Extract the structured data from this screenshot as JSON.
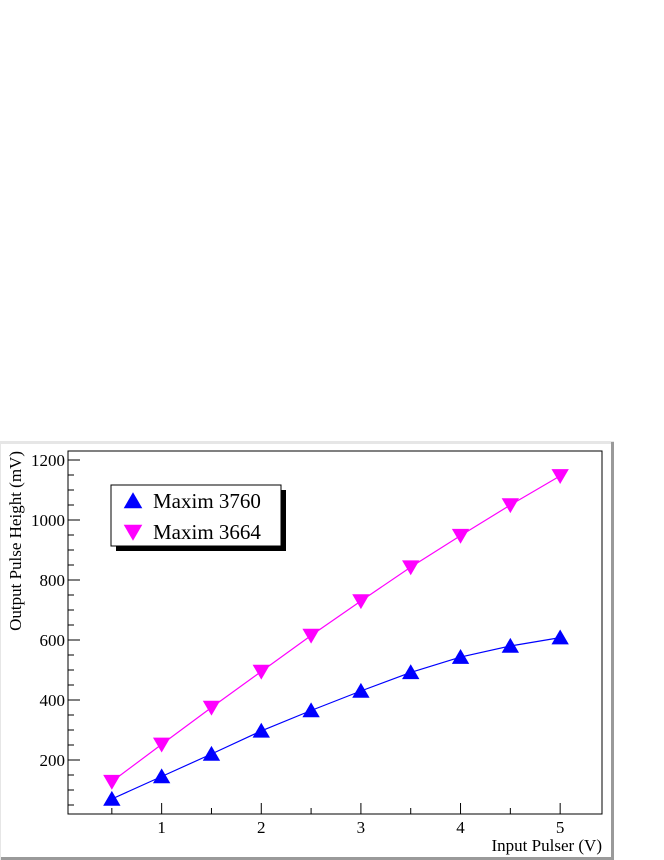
{
  "chart_data": {
    "type": "line",
    "title": "",
    "xlabel": "Input Pulser (V)",
    "ylabel": "Output Pulse Height (mV)",
    "xlim": [
      0.06,
      5.42
    ],
    "ylim": [
      20,
      1230
    ],
    "x_ticks": [
      1,
      2,
      3,
      4,
      5
    ],
    "y_ticks": [
      200,
      400,
      600,
      800,
      1000,
      1200
    ],
    "grid": false,
    "legend_position": "top-left",
    "series": [
      {
        "name": "Maxim 3760",
        "marker": "triangle-up",
        "marker_color": "#0000ff",
        "line_color": "#0000ff",
        "x": [
          0.5,
          1.0,
          1.5,
          2.0,
          2.5,
          3.0,
          3.5,
          4.0,
          4.5,
          5.0
        ],
        "values": [
          70,
          145,
          220,
          297,
          365,
          430,
          492,
          543,
          580,
          608
        ]
      },
      {
        "name": "Maxim 3664",
        "marker": "triangle-down",
        "marker_color": "#ff00ff",
        "line_color": "#ff00ff",
        "x": [
          0.5,
          1.0,
          1.5,
          2.0,
          2.5,
          3.0,
          3.5,
          4.0,
          4.5,
          5.0
        ],
        "values": [
          128,
          252,
          375,
          495,
          615,
          730,
          843,
          948,
          1050,
          1147
        ]
      }
    ]
  }
}
